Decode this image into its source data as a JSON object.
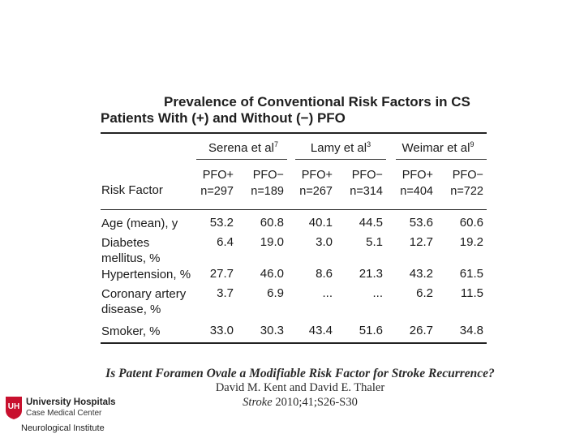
{
  "title": {
    "line1": "Prevalence of Conventional Risk Factors in CS",
    "line2": "Patients With (+) and Without (−) PFO"
  },
  "groups": [
    {
      "name": "Serena et al",
      "ref": "7"
    },
    {
      "name": "Lamy et al",
      "ref": "3"
    },
    {
      "name": "Weimar et al",
      "ref": "9"
    }
  ],
  "columns": [
    {
      "label": "PFO+",
      "n": "n=297"
    },
    {
      "label": "PFO−",
      "n": "n=189"
    },
    {
      "label": "PFO+",
      "n": "n=267"
    },
    {
      "label": "PFO−",
      "n": "n=314"
    },
    {
      "label": "PFO+",
      "n": "n=404"
    },
    {
      "label": "PFO−",
      "n": "n=722"
    }
  ],
  "risk_factor_header": "Risk Factor",
  "rows": [
    {
      "label_lines": [
        "Age (mean), y"
      ],
      "values": [
        "53.2",
        "60.8",
        "40.1",
        "44.5",
        "53.6",
        "60.6"
      ]
    },
    {
      "label_lines": [
        "Diabetes",
        "mellitus, %"
      ],
      "values": [
        "6.4",
        "19.0",
        "3.0",
        "5.1",
        "12.7",
        "19.2"
      ]
    },
    {
      "label_lines": [
        "Hypertension, %"
      ],
      "values": [
        "27.7",
        "46.0",
        "8.6",
        "21.3",
        "43.2",
        "61.5"
      ]
    },
    {
      "label_lines": [
        "Coronary artery",
        "disease, %"
      ],
      "values": [
        "3.7",
        "6.9",
        "...",
        "...",
        "6.2",
        "11.5"
      ]
    },
    {
      "label_lines": [
        "Smoker, %"
      ],
      "values": [
        "33.0",
        "30.3",
        "43.4",
        "51.6",
        "26.7",
        "34.8"
      ]
    }
  ],
  "citation": {
    "title": "Is Patent Foramen Ovale a Modifiable Risk Factor for Stroke Recurrence?",
    "authors": "David M. Kent and David E. Thaler",
    "journal": "Stroke",
    "details": " 2010;41;S26-S30"
  },
  "logo": {
    "name": "University Hospitals",
    "subtitle": "Case Medical Center",
    "institute": "Neurological Institute",
    "mark_letters": "UH",
    "color": "#c8102e"
  }
}
